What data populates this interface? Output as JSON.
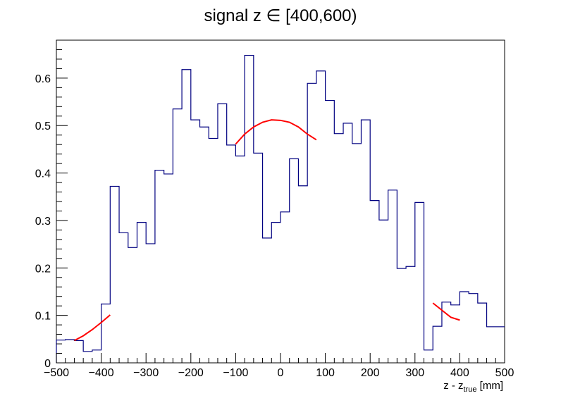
{
  "chart_data": {
    "type": "histogram",
    "title": "signal z ∈ [400,600)",
    "xlabel": {
      "main": "z - z",
      "subscript": "true",
      "suffix": " [mm]"
    },
    "ylabel": "",
    "xlim": [
      -500,
      500
    ],
    "ylim": [
      0,
      0.68
    ],
    "x_ticks": [
      -500,
      -400,
      -300,
      -200,
      -100,
      0,
      100,
      200,
      300,
      400,
      500
    ],
    "x_tick_labels": [
      "−500",
      "−400",
      "−300",
      "−200",
      "−100",
      "0",
      "100",
      "200",
      "300",
      "400",
      "500"
    ],
    "y_ticks": [
      0,
      0.1,
      0.2,
      0.3,
      0.4,
      0.5,
      0.6
    ],
    "y_tick_labels": [
      "0",
      "0.1",
      "0.2",
      "0.3",
      "0.4",
      "0.5",
      "0.6"
    ],
    "grid": false,
    "legend": "none",
    "series": [
      {
        "kind": "histogram",
        "color": "#000080",
        "bin_edges": [
          -500,
          -480,
          -460,
          -440,
          -420,
          -400,
          -380,
          -360,
          -340,
          -320,
          -300,
          -280,
          -260,
          -240,
          -220,
          -200,
          -180,
          -160,
          -140,
          -120,
          -100,
          -80,
          -60,
          -40,
          -20,
          0,
          20,
          40,
          60,
          80,
          100,
          120,
          140,
          160,
          180,
          200,
          220,
          240,
          260,
          280,
          300,
          320,
          340,
          360,
          380,
          400,
          420,
          440,
          460,
          480,
          500
        ],
        "values": [
          0.048,
          0.049,
          0.047,
          0.024,
          0.027,
          0.124,
          0.372,
          0.274,
          0.243,
          0.296,
          0.251,
          0.406,
          0.398,
          0.535,
          0.618,
          0.512,
          0.497,
          0.473,
          0.546,
          0.459,
          0.436,
          0.648,
          0.442,
          0.263,
          0.296,
          0.318,
          0.43,
          0.373,
          0.589,
          0.615,
          0.553,
          0.483,
          0.505,
          0.462,
          0.512,
          0.342,
          0.301,
          0.364,
          0.199,
          0.203,
          0.338,
          0.027,
          0.077,
          0.128,
          0.122,
          0.15,
          0.146,
          0.126,
          0.076,
          0.076
        ]
      },
      {
        "kind": "fit-curve",
        "color": "#ff0000",
        "points": [
          [
            -460,
            0.047
          ],
          [
            -440,
            0.057
          ],
          [
            -420,
            0.07
          ],
          [
            -400,
            0.085
          ],
          [
            -380,
            0.101
          ]
        ]
      },
      {
        "kind": "fit-curve",
        "color": "#ff0000",
        "points": [
          [
            -100,
            0.461
          ],
          [
            -80,
            0.482
          ],
          [
            -60,
            0.497
          ],
          [
            -40,
            0.507
          ],
          [
            -20,
            0.512
          ],
          [
            0,
            0.511
          ],
          [
            20,
            0.507
          ],
          [
            40,
            0.497
          ],
          [
            60,
            0.482
          ],
          [
            80,
            0.47
          ]
        ]
      },
      {
        "kind": "fit-curve",
        "color": "#ff0000",
        "points": [
          [
            340,
            0.126
          ],
          [
            360,
            0.111
          ],
          [
            380,
            0.096
          ],
          [
            400,
            0.09
          ]
        ]
      }
    ]
  }
}
